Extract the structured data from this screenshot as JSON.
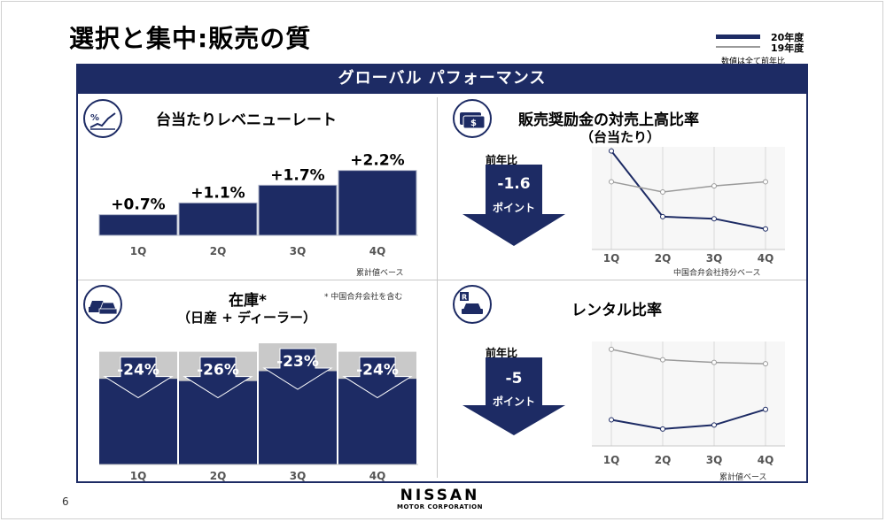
{
  "page": {
    "title": "選択と集中:販売の質",
    "banner": "グローバル パフォーマンス",
    "page_number": "6"
  },
  "legend": {
    "items": [
      {
        "label": "20年度",
        "color": "#1d2b64"
      },
      {
        "label": "19年度",
        "color": "#9a9a9a"
      }
    ],
    "note": "数値は全て前年比"
  },
  "colors": {
    "navy": "#1d2b64",
    "gray": "#9a9a9a",
    "light_gray": "#c8c8c8"
  },
  "logo": {
    "name": "NISSAN",
    "sub": "MOTOR CORPORATION"
  },
  "panels": {
    "revenue": {
      "title": "台当たりレベニューレート",
      "icon": "percent-chart-icon",
      "footnote": "累計値ベース"
    },
    "incentive": {
      "title": "販売奨励金の対売上高比率",
      "subtitle": "（台当たり）",
      "icon": "money-icon",
      "arrow_label": "前年比",
      "arrow_value": "-1.6",
      "arrow_unit": "ポイント",
      "footnote": "中国合弁会社持分ベース"
    },
    "inventory": {
      "title": "在庫*",
      "subtitle": "（日産 + ディーラー）",
      "icon": "cars-icon",
      "footnote": "* 中国合弁会社を含む"
    },
    "rental": {
      "title": "レンタル比率",
      "icon": "rental-car-icon",
      "arrow_label": "前年比",
      "arrow_value": "-5",
      "arrow_unit": "ポイント",
      "footnote": "累計値ベース"
    }
  },
  "chart_data": [
    {
      "type": "bar",
      "title": "台当たりレベニューレート",
      "categories": [
        "1Q",
        "2Q",
        "3Q",
        "4Q"
      ],
      "values": [
        0.7,
        1.1,
        1.7,
        2.2
      ],
      "data_labels": [
        "+0.7%",
        "+1.1%",
        "+1.7%",
        "+2.2%"
      ],
      "ylim": [
        0,
        2.4
      ]
    },
    {
      "type": "line",
      "title": "販売奨励金の対売上高比率",
      "categories": [
        "1Q",
        "2Q",
        "3Q",
        "4Q"
      ],
      "series": [
        {
          "name": "20年度",
          "values": [
            8.8,
            5.6,
            5.5,
            5.0
          ]
        },
        {
          "name": "19年度",
          "values": [
            7.3,
            6.8,
            7.1,
            7.3
          ]
        }
      ],
      "ylim": [
        4,
        9
      ],
      "grid": true
    },
    {
      "type": "bar",
      "title": "在庫*",
      "categories": [
        "1Q",
        "2Q",
        "3Q",
        "4Q"
      ],
      "series": [
        {
          "name": "20年度",
          "values": [
            0.76,
            0.74,
            0.77,
            0.76
          ]
        },
        {
          "name": "19年度",
          "values": [
            1.0,
            1.0,
            1.0,
            1.0
          ]
        }
      ],
      "data_labels": [
        "-24%",
        "-26%",
        "-23%",
        "-24%"
      ],
      "ylim": [
        0,
        1.0
      ]
    },
    {
      "type": "line",
      "title": "レンタル比率",
      "categories": [
        "1Q",
        "2Q",
        "3Q",
        "4Q"
      ],
      "series": [
        {
          "name": "20年度",
          "values": [
            2.0,
            1.3,
            1.6,
            2.8
          ]
        },
        {
          "name": "19年度",
          "values": [
            7.4,
            6.6,
            6.4,
            6.3
          ]
        }
      ],
      "ylim": [
        0,
        8
      ],
      "grid": true
    }
  ]
}
